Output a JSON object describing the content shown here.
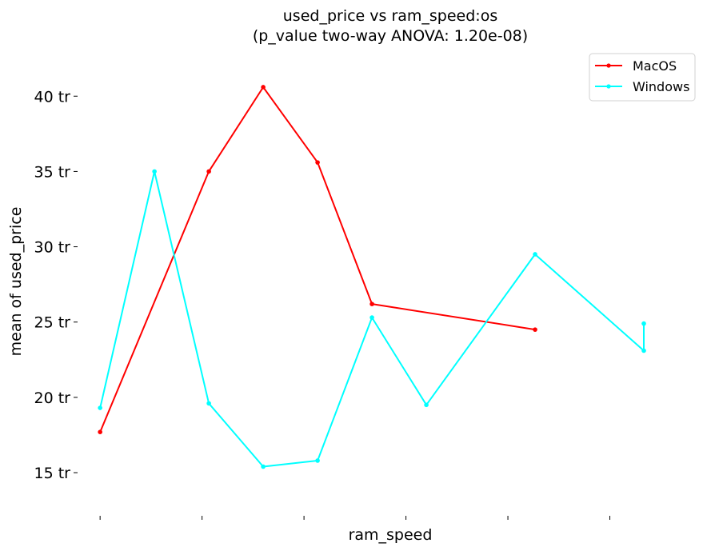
{
  "chart_data": {
    "type": "line",
    "title": "used_price vs ram_speed:os",
    "subtitle": "(p_value two-way ANOVA: 1.20e-08)",
    "xlabel": "ram_speed",
    "ylabel": "mean of used_price",
    "y_ticks": [
      {
        "value": 15,
        "label": "15 tr"
      },
      {
        "value": 20,
        "label": "20 tr"
      },
      {
        "value": 25,
        "label": "25 tr"
      },
      {
        "value": 30,
        "label": "30 tr"
      },
      {
        "value": 35,
        "label": "35 tr"
      },
      {
        "value": 40,
        "label": "40 tr"
      }
    ],
    "ylim": [
      12.4,
      43.2
    ],
    "xlim": [
      -0.37,
      11.0
    ],
    "x_ticks": [
      0,
      1.875,
      3.75,
      5.625,
      7.5,
      9.375,
      11.25
    ],
    "grid": false,
    "legend_position": "top-right",
    "series": [
      {
        "name": "MacOS",
        "color": "#ff0000",
        "x": [
          0,
          2,
          3,
          4,
          5,
          8
        ],
        "values": [
          17.7,
          35.0,
          40.6,
          35.6,
          26.2,
          24.5
        ]
      },
      {
        "name": "Windows",
        "color": "#00ffff",
        "x": [
          0,
          1,
          2,
          3,
          4,
          5,
          6,
          8,
          10,
          10
        ],
        "values": [
          19.3,
          35.0,
          19.6,
          15.4,
          15.8,
          25.3,
          19.5,
          29.5,
          23.1,
          24.9
        ]
      }
    ]
  }
}
